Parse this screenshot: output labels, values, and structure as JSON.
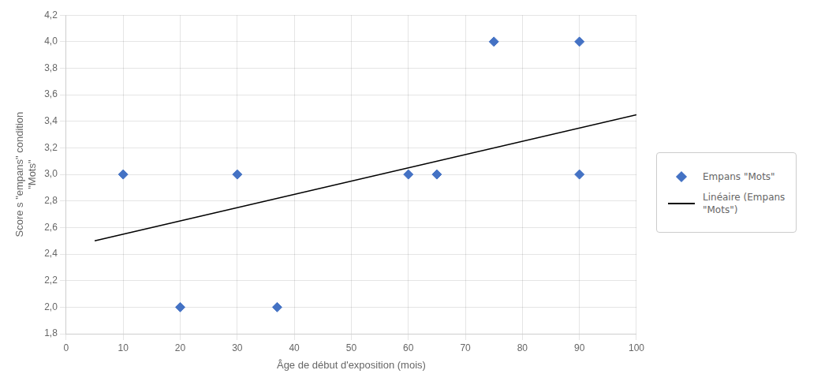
{
  "chart_data": {
    "type": "scatter",
    "xlabel": "Âge de début d'exposition (mois)",
    "ylabel": [
      "Score s \"empans\" condition",
      "\"Mots\""
    ],
    "series": [
      {
        "name": "Empans \"Mots\"",
        "type": "scatter",
        "color": "#4472C4",
        "marker": "diamond",
        "x": [
          10,
          20,
          30,
          37,
          60,
          65,
          75,
          90,
          90
        ],
        "values": [
          3,
          2,
          3,
          2,
          3,
          3,
          4,
          4,
          3
        ]
      },
      {
        "name": "Linéaire (Empans\n\"Mots\")",
        "type": "line",
        "color": "#000000",
        "line_style": "solid",
        "x": [
          5,
          100
        ],
        "values": [
          2.5,
          3.45
        ]
      }
    ],
    "xlim": [
      0,
      100
    ],
    "ylim": [
      1.8,
      4.2
    ],
    "xticks": [
      0,
      10,
      20,
      30,
      40,
      50,
      60,
      70,
      80,
      90,
      100
    ],
    "yticks": [
      {
        "value": 1.8,
        "label": "1,8"
      },
      {
        "value": 2.0,
        "label": "2,0"
      },
      {
        "value": 2.2,
        "label": "2,2"
      },
      {
        "value": 2.4,
        "label": "2,4"
      },
      {
        "value": 2.6,
        "label": "2,6"
      },
      {
        "value": 2.8,
        "label": "2,8"
      },
      {
        "value": 3.0,
        "label": "3,0"
      },
      {
        "value": 3.2,
        "label": "3,2"
      },
      {
        "value": 3.4,
        "label": "3,4"
      },
      {
        "value": 3.6,
        "label": "3,6"
      },
      {
        "value": 3.8,
        "label": "3,8"
      },
      {
        "value": 4.0,
        "label": "4,0"
      },
      {
        "value": 4.2,
        "label": "4,2"
      }
    ],
    "grid": true,
    "legend": "right"
  }
}
